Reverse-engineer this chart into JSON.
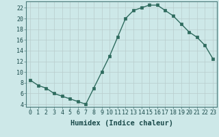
{
  "x": [
    0,
    1,
    2,
    3,
    4,
    5,
    6,
    7,
    8,
    9,
    10,
    11,
    12,
    13,
    14,
    15,
    16,
    17,
    18,
    19,
    20,
    21,
    22,
    23
  ],
  "y": [
    8.5,
    7.5,
    7,
    6,
    5.5,
    5,
    4.5,
    4,
    7,
    10,
    13,
    16.5,
    20,
    21.5,
    22,
    22.5,
    22.5,
    21.5,
    20.5,
    19,
    17.5,
    16.5,
    15,
    12.5
  ],
  "line_color": "#2e6b5e",
  "bg_color": "#cde8e8",
  "plot_bg_color": "#cde8e8",
  "grid_color": "#b8cccc",
  "xlabel": "Humidex (Indice chaleur)",
  "ylim": [
    3.5,
    23.2
  ],
  "xlim": [
    -0.5,
    23.5
  ],
  "yticks": [
    4,
    6,
    8,
    10,
    12,
    14,
    16,
    18,
    20,
    22
  ],
  "xticks": [
    0,
    1,
    2,
    3,
    4,
    5,
    6,
    7,
    8,
    9,
    10,
    11,
    12,
    13,
    14,
    15,
    16,
    17,
    18,
    19,
    20,
    21,
    22,
    23
  ],
  "tick_fontsize": 6.0,
  "xlabel_fontsize": 7.5,
  "marker_size": 2.5,
  "linewidth": 1.0
}
